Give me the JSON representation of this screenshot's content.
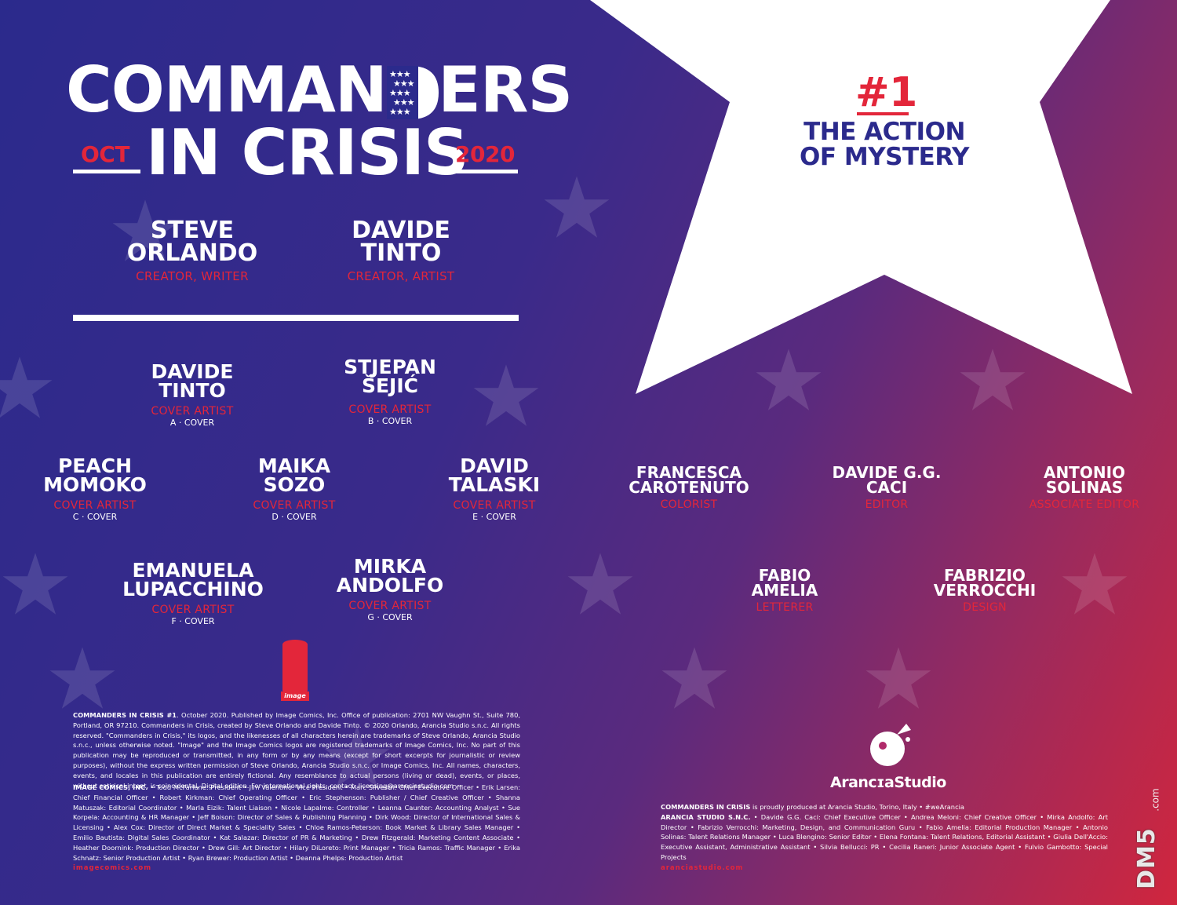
{
  "colors": {
    "accent_red": "#e3263a",
    "navy": "#2b2a8c",
    "white": "#ffffff"
  },
  "title": {
    "line1_a": "COMMAN",
    "line1_d": "D",
    "line1_b": "ERS",
    "line2": "IN CRISIS",
    "month": "OCT",
    "year": "2020"
  },
  "issue": {
    "number": "#1",
    "title_line1": "THE ACTION",
    "title_line2": "OF MYSTERY"
  },
  "creators": [
    {
      "name": "STEVE\nORLANDO",
      "role": "CREATOR, WRITER"
    },
    {
      "name": "DAVIDE\nTINTO",
      "role": "CREATOR, ARTIST"
    }
  ],
  "cover_artists": [
    {
      "name": "DAVIDE\nTINTO",
      "role": "COVER ARTIST",
      "cover": "A · COVER"
    },
    {
      "name": "STJEPAN\nŠEJIĆ",
      "role": "COVER ARTIST",
      "cover": "B · COVER"
    },
    {
      "name": "PEACH\nMOMOKO",
      "role": "COVER ARTIST",
      "cover": "C · COVER"
    },
    {
      "name": "MAIKA\nSOZO",
      "role": "COVER ARTIST",
      "cover": "D · COVER"
    },
    {
      "name": "DAVID\nTALASKI",
      "role": "COVER ARTIST",
      "cover": "E · COVER"
    },
    {
      "name": "EMANUELA\nLUPACCHINO",
      "role": "COVER ARTIST",
      "cover": "F · COVER"
    },
    {
      "name": "MIRKA\nANDOLFO",
      "role": "COVER ARTIST",
      "cover": "G · COVER"
    }
  ],
  "staff": [
    {
      "name": "FRANCESCA\nCAROTENUTO",
      "role": "COLORIST"
    },
    {
      "name": "DAVIDE G.G.\nCACI",
      "role": "EDITOR"
    },
    {
      "name": "ANTONIO\nSOLINAS",
      "role": "ASSOCIATE EDITOR"
    },
    {
      "name": "FABIO\nAMELIA",
      "role": "LETTERER"
    },
    {
      "name": "FABRIZIO\nVERROCCHI",
      "role": "DESIGN"
    }
  ],
  "image_logo_text": "image",
  "legal": {
    "indicia_title": "COMMANDERS IN CRISIS #1",
    "indicia_body": ". October 2020. Published by Image Comics, Inc. Office of publication: 2701 NW Vaughn St., Suite 780, Portland, OR 97210. Commanders in Crisis, created by Steve Orlando and Davide Tinto. © 2020 Orlando, Arancia Studio s.n.c. All rights reserved. \"Commanders in Crisis,\" its logos, and the likenesses of all characters herein are trademarks of Steve Orlando, Arancia Studio s.n.c., unless otherwise noted. \"Image\" and the Image Comics logos are registered trademarks of Image Comics, Inc. No part of this publication may be reproduced or transmitted, in any form or by any means (except for short excerpts for journalistic or review purposes), without the express written permission of Steve Orlando, Arancia Studio s.n.c. or Image Comics, Inc. All names, characters, events, and locales in this publication are entirely fictional. Any resemblance to actual persons (living or dead), events, or places, without satirical intent, is coincidental. Digital edition. For international rights, contact: licensing@aranciastudio.com",
    "image_staff_title": "IMAGE COMICS, INC.",
    "image_staff_body": " • Todd McFarlane: President • Jim Valentino: Vice President • Marc Silvestri: Chief Executive Officer • Erik Larsen: Chief Financial Officer • Robert Kirkman: Chief Operating Officer • Eric Stephenson: Publisher / Chief Creative Officer • Shanna Matuszak: Editorial Coordinator • Marla Eizik: Talent Liaison • Nicole Lapalme: Controller • Leanna Caunter: Accounting Analyst • Sue Korpela: Accounting & HR Manager • Jeff Boison: Director of Sales & Publishing Planning • Dirk Wood: Director of International Sales & Licensing • Alex Cox: Director of Direct Market & Speciality Sales • Chloe Ramos-Peterson: Book Market & Library Sales Manager • Emilio Bautista: Digital Sales Coordinator • Kat Salazar: Director of PR & Marketing • Drew Fitzgerald: Marketing Content Associate • Heather Doornink: Production Director • Drew Gill: Art Director • Hilary DiLoreto: Print Manager • Tricia Ramos: Traffic Manager • Erika Schnatz: Senior Production Artist • Ryan Brewer: Production Artist • Deanna Phelps: Production Artist",
    "image_url": "imagecomics.com",
    "arancia_logo": "ArancɪaStudio",
    "arancia_title": "COMMANDERS IN CRISIS",
    "arancia_body1": " is proudly produced at Arancia Studio, Torino, Italy • #weArancia",
    "arancia_title2": "ARANCIA STUDIO S.N.C.",
    "arancia_body2": " • Davide G.G. Caci: Chief Executive Officer • Andrea Meloni: Chief Creative Officer • Mirka Andolfo: Art Director • Fabrizio Verrocchi: Marketing, Design, and Communication Guru • Fabio Amelia: Editorial Production Manager • Antonio Solinas: Talent Relations Manager • Luca Blengino: Senior Editor • Elena Fontana: Talent Relations, Editorial Assistant • Giulia Dell'Accio: Executive Assistant, Administrative Assistant • Silvia Bellucci: PR • Cecilia Raneri: Junior Associate Agent • Fulvio Gambotto: Special Projects",
    "arancia_url": "aranciastudio.com"
  },
  "watermark": {
    "main": "DM5",
    "sub": ".com"
  }
}
